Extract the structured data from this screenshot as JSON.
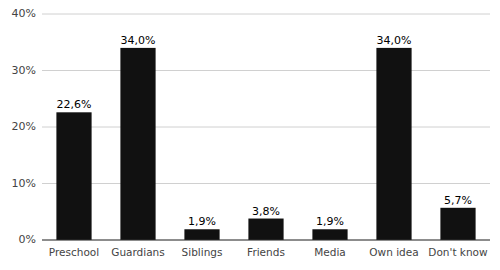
{
  "chart_data": {
    "type": "bar",
    "categories": [
      "Preschool",
      "Guardians",
      "Siblings",
      "Friends",
      "Media",
      "Own idea",
      "Don't know"
    ],
    "values": [
      22.6,
      34.0,
      1.9,
      3.8,
      1.9,
      34.0,
      5.7
    ],
    "value_labels": [
      "22,6%",
      "34,0%",
      "1,9%",
      "3,8%",
      "1,9%",
      "34,0%",
      "5,7%"
    ],
    "data_labels": true,
    "color": "#111111",
    "ylim": [
      0,
      40
    ],
    "yticks": [
      {
        "value": 0,
        "label": "0%"
      },
      {
        "value": 10,
        "label": "10%"
      },
      {
        "value": 20,
        "label": "20%"
      },
      {
        "value": 30,
        "label": "30%"
      },
      {
        "value": 40,
        "label": "40%"
      }
    ],
    "grid": true
  }
}
